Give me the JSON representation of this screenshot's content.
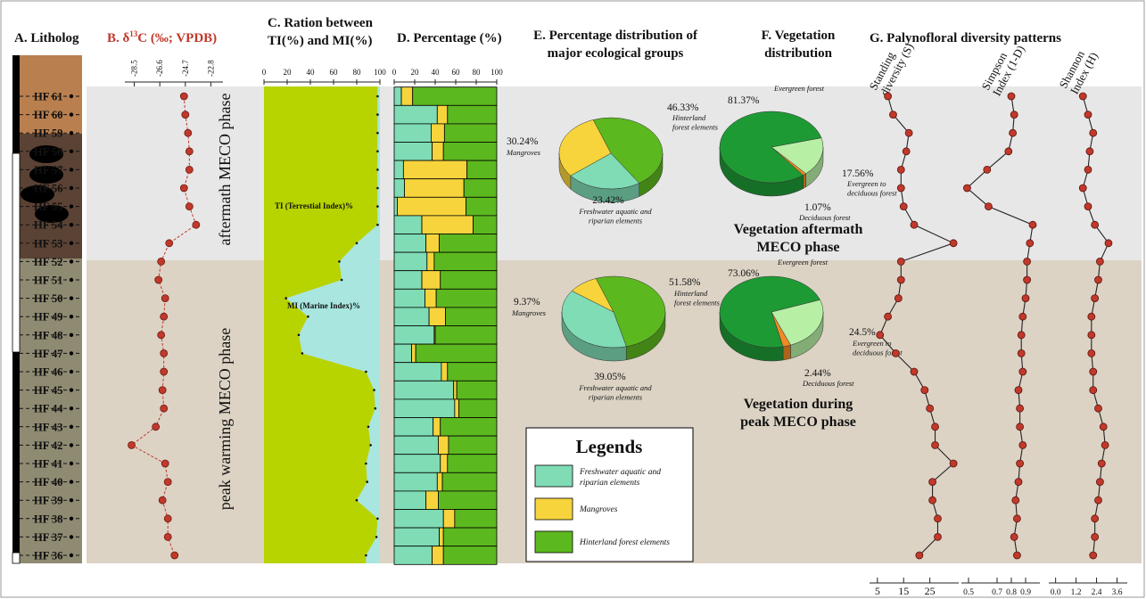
{
  "chart_data": [
    {
      "type": "litholog",
      "title": "A. Litholog",
      "samples": [
        "HF 61",
        "HF 60",
        "HF 59",
        "HF 58",
        "HF 57",
        "HF 56",
        "HF 55",
        "HF 54",
        "HF 53",
        "HF 52",
        "HF 51",
        "HF 50",
        "HF 49",
        "HF 48",
        "HF 47",
        "HF 46",
        "HF 45",
        "HF 44",
        "HF 43",
        "HF 42",
        "HF 41",
        "HF 40",
        "HF 39",
        "HF 38",
        "HF 37",
        "HF 36"
      ]
    },
    {
      "type": "line",
      "title": [
        "B. δ",
        "13",
        "C (‰; VPDB)"
      ],
      "xlim": [
        -29.2,
        -21.9
      ],
      "xticks": [
        -28.5,
        -26.6,
        -24.7,
        -22.8
      ],
      "color": "#c0392b",
      "values": [
        -24.8,
        -24.7,
        -24.5,
        -24.4,
        -24.4,
        -24.8,
        -24.4,
        -23.9,
        -25.9,
        -26.5,
        -26.7,
        -26.2,
        -26.3,
        -26.5,
        -26.3,
        -26.3,
        -26.4,
        -26.3,
        -26.9,
        -28.7,
        -26.2,
        -26.0,
        -26.4,
        -26.0,
        -26.0,
        -25.5
      ],
      "annotations": [
        "aftermath MECO phase",
        "peak warming MECO phase"
      ],
      "annotation_color": "#e8892c"
    },
    {
      "type": "area",
      "title": [
        "C.  Ration between",
        "TI(%) and MI(%)"
      ],
      "xlim": [
        0,
        100
      ],
      "xticks": [
        0,
        20,
        40,
        60,
        80,
        100
      ],
      "series": [
        {
          "name": "TI (Terrestial Index)%",
          "color": "#b7d300",
          "values": [
            98,
            98,
            98,
            98,
            98,
            98,
            98,
            98,
            80,
            65,
            67,
            19,
            38,
            30,
            33,
            88,
            95,
            96,
            90,
            92,
            88,
            89,
            80,
            98,
            97,
            88
          ]
        },
        {
          "name": "MI (Marine Index)%",
          "color": "#a8e6df",
          "values": [
            2,
            2,
            2,
            2,
            2,
            2,
            2,
            2,
            20,
            35,
            33,
            81,
            62,
            70,
            67,
            12,
            5,
            4,
            10,
            8,
            12,
            11,
            20,
            2,
            3,
            12
          ]
        }
      ]
    },
    {
      "type": "stacked-bar",
      "title": "D. Percentage (%)",
      "xlim": [
        0,
        100
      ],
      "xticks": [
        0,
        20,
        40,
        60,
        80,
        100
      ],
      "legend_title": "Legends",
      "series": [
        {
          "name": "Freshwater aquatic and riparian elements",
          "color": "#7fdcb5",
          "values": [
            7,
            42,
            36,
            37,
            9,
            10,
            3,
            27,
            31,
            32,
            27,
            30,
            34,
            39,
            17,
            46,
            58,
            59,
            38,
            43,
            45,
            42,
            31,
            48,
            44,
            37
          ]
        },
        {
          "name": "Mangroves",
          "color": "#f7d43c",
          "values": [
            11,
            10,
            13,
            11,
            62,
            58,
            67,
            50,
            13,
            7,
            18,
            11,
            16,
            1,
            4,
            6,
            3,
            4,
            7,
            10,
            7,
            5,
            12,
            11,
            4,
            11
          ]
        },
        {
          "name": "Hinterland forest elements",
          "color": "#5cb81f",
          "values": [
            82,
            48,
            51,
            52,
            29,
            32,
            30,
            23,
            56,
            61,
            55,
            59,
            50,
            60,
            79,
            48,
            39,
            37,
            55,
            47,
            48,
            53,
            57,
            41,
            52,
            52
          ]
        }
      ]
    },
    {
      "type": "pie",
      "title": [
        "E. Percentage distribution of",
        "major ecological groups"
      ],
      "colors": [
        "#5cb81f",
        "#7fdcb5",
        "#f7d43c"
      ],
      "pies": [
        {
          "values": [
            46.33,
            23.42,
            30.24
          ],
          "value_labels": [
            "46.33%",
            "23.42%",
            "30.24%"
          ],
          "labels": [
            [
              "Hinterland",
              "forest elements"
            ],
            [
              "Freshwater aquatic and",
              "riparian elements"
            ],
            [
              "Mangroves"
            ]
          ]
        },
        {
          "values": [
            51.58,
            39.05,
            9.37
          ],
          "value_labels": [
            "51.58%",
            "39.05%",
            "9.37%"
          ],
          "labels": [
            [
              "Hinterland",
              "forest elements"
            ],
            [
              "Freshwater aquatic and",
              "riparian elements"
            ],
            [
              "Mangroves"
            ]
          ]
        }
      ]
    },
    {
      "type": "pie",
      "title": [
        "F. Vegetation",
        "distribution"
      ],
      "colors": [
        "#1e9a35",
        "#b7efa5",
        "#f08a24"
      ],
      "pies": [
        {
          "values": [
            81.37,
            17.56,
            1.07
          ],
          "value_labels": [
            "81.37%",
            "17.56%",
            "1.07%"
          ],
          "labels": [
            [
              "Evergreen forest"
            ],
            [
              "Evergreen to",
              "deciduous forest"
            ],
            [
              "Deciduous forest"
            ]
          ],
          "caption": [
            "Vegetation aftermath",
            "MECO phase"
          ]
        },
        {
          "values": [
            73.06,
            24.5,
            2.44
          ],
          "value_labels": [
            "73.06%",
            "24.5%",
            "2.44%"
          ],
          "labels": [
            [
              "Evergreen forest"
            ],
            [
              "Evergreen to",
              "deciduous forest"
            ],
            [
              "Deciduous forest"
            ]
          ],
          "caption": [
            "Vegetation during",
            "peak MECO phase"
          ]
        }
      ]
    },
    {
      "type": "multi-line",
      "title": "G. Palynofloral diversity patterns",
      "color": "#c0392b",
      "panels": [
        {
          "name": [
            "Standing",
            "diversity (S)"
          ],
          "xlim": [
            2,
            36
          ],
          "xticks": [
            5,
            15,
            25
          ],
          "values": [
            9,
            11,
            17,
            16,
            14,
            14,
            15,
            19,
            34,
            14,
            14,
            13,
            9,
            6,
            12,
            19,
            23,
            25,
            27,
            27,
            34,
            26,
            26,
            28,
            28,
            21
          ]
        },
        {
          "name": [
            "Simpson",
            "Index (1-D)"
          ],
          "xlim": [
            0.45,
            1.0
          ],
          "xticks": [
            0.5,
            0.7,
            0.8,
            0.9
          ],
          "values": [
            0.8,
            0.82,
            0.81,
            0.78,
            0.63,
            0.49,
            0.64,
            0.95,
            0.93,
            0.91,
            0.91,
            0.9,
            0.88,
            0.87,
            0.87,
            0.88,
            0.85,
            0.86,
            0.86,
            0.88,
            0.86,
            0.85,
            0.83,
            0.84,
            0.82,
            0.84
          ]
        },
        {
          "name": [
            "Shannon",
            "Index (H)"
          ],
          "xlim": [
            -0.4,
            4.2
          ],
          "xticks": [
            {
              "value": 0,
              "label": "0.0"
            },
            1.2,
            2.4,
            3.6
          ],
          "values": [
            1.6,
            1.9,
            2.2,
            2.0,
            1.9,
            1.6,
            1.9,
            2.3,
            3.1,
            2.6,
            2.5,
            2.3,
            2.1,
            2.1,
            2.1,
            2.2,
            2.2,
            2.5,
            2.8,
            2.9,
            2.7,
            2.6,
            2.5,
            2.3,
            2.3,
            2.2
          ]
        }
      ]
    }
  ]
}
